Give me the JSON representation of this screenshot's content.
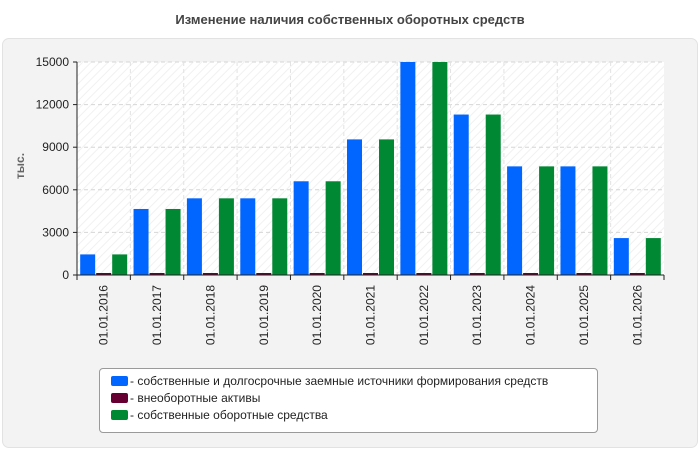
{
  "chart_data": {
    "type": "bar",
    "title": "Изменение наличия собственных оборотных средств",
    "xlabel": "",
    "ylabel": "тыс.",
    "ylim": [
      0,
      15000
    ],
    "yticks": [
      "0",
      "3000",
      "6000",
      "9000",
      "12000",
      "15000"
    ],
    "categories": [
      "01.01.2016",
      "01.01.2017",
      "01.01.2018",
      "01.01.2019",
      "01.01.2020",
      "01.01.2021",
      "01.01.2022",
      "01.01.2023",
      "01.01.2024",
      "01.01.2025",
      "01.01.2026"
    ],
    "series": [
      {
        "name": "- собственные и долгосрочные заемные источники формирования средств",
        "color": "#0066ff",
        "values": [
          1450,
          4650,
          5400,
          5400,
          6600,
          9550,
          15000,
          11300,
          7650,
          7650,
          2600
        ]
      },
      {
        "name": "- внеоборотные активы",
        "color": "#660033",
        "values": [
          0,
          0,
          0,
          0,
          0,
          0,
          0,
          0,
          0,
          0,
          0
        ]
      },
      {
        "name": "- собственные оборотные средства",
        "color": "#008833",
        "values": [
          1450,
          4650,
          5400,
          5400,
          6600,
          9550,
          15000,
          11300,
          7650,
          7650,
          2600
        ]
      }
    ],
    "grid": true,
    "legend_position": "bottom"
  }
}
